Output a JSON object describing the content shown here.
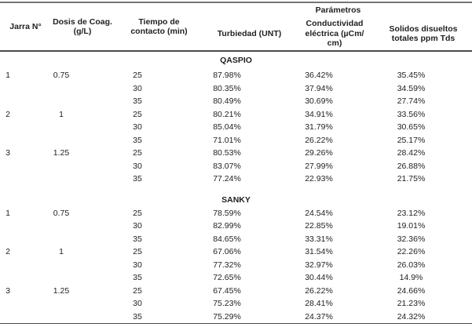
{
  "colors": {
    "border_top": "#757575",
    "border_strong": "#4a4a4a",
    "text": "#1f1f1f"
  },
  "table": {
    "group_header": "Parámetros",
    "columns": [
      {
        "label": "Jarra N°"
      },
      {
        "label": "Dosis de Coag.\n(g/L)"
      },
      {
        "label": "Tiempo de\ncontacto (min)"
      },
      {
        "label": "Turbiedad (UNT)"
      },
      {
        "label": "Conductividad\neléctrica (µCm/\ncm)"
      },
      {
        "label": "Solidos disueltos\ntotales ppm Tds"
      }
    ],
    "sections": [
      {
        "name": "QASPIO",
        "rows": [
          [
            "1",
            "0.75",
            "25",
            "87.98%",
            "36.42%",
            "35.45%"
          ],
          [
            "",
            "",
            "30",
            "80.35%",
            "37.94%",
            "34.59%"
          ],
          [
            "",
            "",
            "35",
            "80.49%",
            "30.69%",
            "27.74%"
          ],
          [
            "2",
            "1",
            "25",
            "80.21%",
            "34.91%",
            "33.56%"
          ],
          [
            "",
            "",
            "30",
            "85.04%",
            "31.79%",
            "30.65%"
          ],
          [
            "",
            "",
            "35",
            "71.01%",
            "26.22%",
            "25.17%"
          ],
          [
            "3",
            "1.25",
            "25",
            "80.53%",
            "29.26%",
            "28.42%"
          ],
          [
            "",
            "",
            "30",
            "83.07%",
            "27.99%",
            "26.88%"
          ],
          [
            "",
            "",
            "35",
            "77.24%",
            "22.93%",
            "21.75%"
          ]
        ]
      },
      {
        "name": "SANKY",
        "rows": [
          [
            "1",
            "0.75",
            "25",
            "78.59%",
            "24.54%",
            "23.12%"
          ],
          [
            "",
            "",
            "30",
            "82.99%",
            "22.85%",
            "19.01%"
          ],
          [
            "",
            "",
            "35",
            "84.65%",
            "33.31%",
            "32.36%"
          ],
          [
            "2",
            "1",
            "25",
            "67.06%",
            "31.54%",
            "22.26%"
          ],
          [
            "",
            "",
            "30",
            "77.32%",
            "32.97%",
            "26.03%"
          ],
          [
            "",
            "",
            "35",
            "72.65%",
            "30.44%",
            "14.9%"
          ],
          [
            "3",
            "1.25",
            "25",
            "67.45%",
            "26.22%",
            "24.66%"
          ],
          [
            "",
            "",
            "30",
            "75.23%",
            "28.41%",
            "21.23%"
          ],
          [
            "",
            "",
            "35",
            "75.29%",
            "24.37%",
            "24.32%"
          ]
        ]
      }
    ]
  }
}
